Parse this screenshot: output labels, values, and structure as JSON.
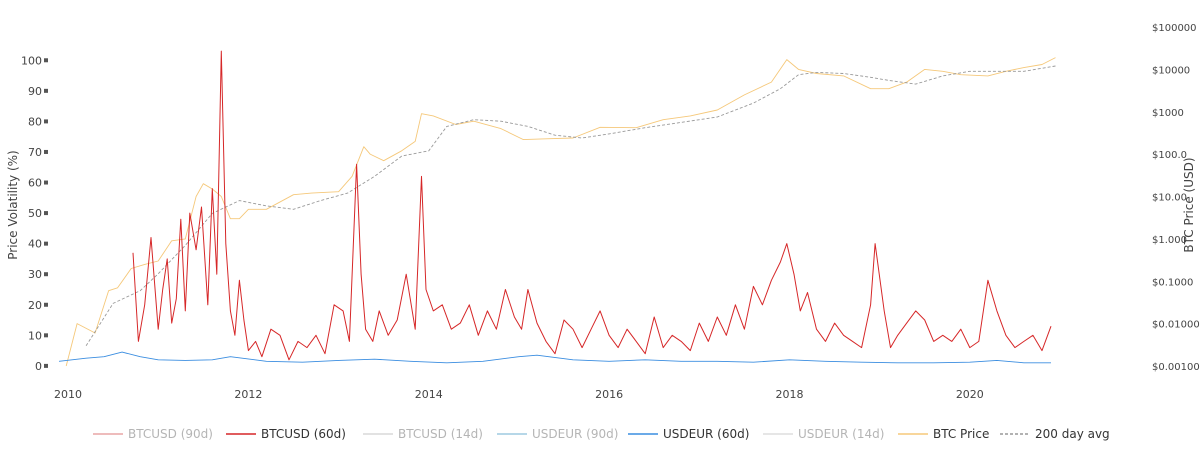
{
  "chart_data": {
    "type": "line",
    "title": "",
    "xlabel": "",
    "ylabel": "Price Volatility (%)",
    "y2label": "BTC Price (USD)",
    "xlim": [
      2009.8,
      2021.0
    ],
    "ylim": [
      -2,
      105
    ],
    "y2scale": "log",
    "y2lim": [
      0.001,
      100000
    ],
    "x_ticks": [
      2010,
      2012,
      2014,
      2016,
      2018,
      2020
    ],
    "x_tick_labels": [
      "2010",
      "2012",
      "2014",
      "2016",
      "2018",
      "2020"
    ],
    "y_ticks": [
      0,
      10,
      20,
      30,
      40,
      50,
      60,
      70,
      80,
      90,
      100
    ],
    "y_tick_labels": [
      "0",
      "10",
      "20",
      "30",
      "40",
      "50",
      "60",
      "70",
      "80",
      "90",
      "100"
    ],
    "y2_ticks": [
      0.001,
      0.01,
      0.1,
      1,
      10,
      100,
      1000,
      10000,
      100000
    ],
    "y2_tick_labels": [
      "$0.001000",
      "$0.01000",
      "$0.1000",
      "$1.000",
      "$10.00",
      "$100.0",
      "$1000",
      "$10000",
      "$100000"
    ],
    "grid": false,
    "legend_position": "bottom",
    "series": [
      {
        "name": "BTCUSD (90d)",
        "color": "#e8a5a5",
        "visible": false,
        "axis": "y",
        "x": [],
        "y": []
      },
      {
        "name": "BTCUSD (60d)",
        "color": "#d62728",
        "visible": true,
        "axis": "y",
        "x": [
          2010.72,
          2010.78,
          2010.85,
          2010.92,
          2011.0,
          2011.05,
          2011.1,
          2011.15,
          2011.2,
          2011.25,
          2011.3,
          2011.35,
          2011.42,
          2011.48,
          2011.55,
          2011.6,
          2011.65,
          2011.7,
          2011.75,
          2011.8,
          2011.85,
          2011.9,
          2011.95,
          2012.0,
          2012.08,
          2012.15,
          2012.25,
          2012.35,
          2012.45,
          2012.55,
          2012.65,
          2012.75,
          2012.85,
          2012.95,
          2013.05,
          2013.12,
          2013.2,
          2013.25,
          2013.3,
          2013.38,
          2013.45,
          2013.55,
          2013.65,
          2013.75,
          2013.85,
          2013.92,
          2013.97,
          2014.05,
          2014.15,
          2014.25,
          2014.35,
          2014.45,
          2014.55,
          2014.65,
          2014.75,
          2014.85,
          2014.95,
          2015.03,
          2015.1,
          2015.2,
          2015.3,
          2015.4,
          2015.5,
          2015.6,
          2015.7,
          2015.8,
          2015.9,
          2016.0,
          2016.1,
          2016.2,
          2016.3,
          2016.4,
          2016.5,
          2016.6,
          2016.7,
          2016.8,
          2016.9,
          2017.0,
          2017.1,
          2017.2,
          2017.3,
          2017.4,
          2017.5,
          2017.6,
          2017.7,
          2017.8,
          2017.9,
          2017.97,
          2018.05,
          2018.12,
          2018.2,
          2018.3,
          2018.4,
          2018.5,
          2018.6,
          2018.7,
          2018.8,
          2018.9,
          2018.95,
          2019.05,
          2019.12,
          2019.2,
          2019.3,
          2019.4,
          2019.5,
          2019.6,
          2019.7,
          2019.8,
          2019.9,
          2020.0,
          2020.1,
          2020.2,
          2020.3,
          2020.4,
          2020.5,
          2020.6,
          2020.7,
          2020.8,
          2020.9
        ],
        "y": [
          37,
          8,
          20,
          42,
          12,
          25,
          35,
          14,
          22,
          48,
          18,
          50,
          38,
          52,
          20,
          58,
          30,
          103,
          40,
          18,
          10,
          28,
          15,
          5,
          8,
          3,
          12,
          10,
          2,
          8,
          6,
          10,
          4,
          20,
          18,
          8,
          66,
          30,
          12,
          8,
          18,
          10,
          15,
          30,
          12,
          62,
          25,
          18,
          20,
          12,
          14,
          20,
          10,
          18,
          12,
          25,
          16,
          12,
          25,
          14,
          8,
          4,
          15,
          12,
          6,
          12,
          18,
          10,
          6,
          12,
          8,
          4,
          16,
          6,
          10,
          8,
          5,
          14,
          8,
          16,
          10,
          20,
          12,
          26,
          20,
          28,
          34,
          40,
          30,
          18,
          24,
          12,
          8,
          14,
          10,
          8,
          6,
          20,
          40,
          18,
          6,
          10,
          14,
          18,
          15,
          8,
          10,
          8,
          12,
          6,
          8,
          28,
          18,
          10,
          6,
          8,
          10,
          5,
          13
        ]
      },
      {
        "name": "BTCUSD (14d)",
        "color": "#d9d9d9",
        "visible": false,
        "axis": "y",
        "x": [],
        "y": []
      },
      {
        "name": "USDEUR (90d)",
        "color": "#9ecae1",
        "visible": false,
        "axis": "y",
        "x": [],
        "y": []
      },
      {
        "name": "USDEUR (60d)",
        "color": "#3a8de0",
        "visible": true,
        "axis": "y",
        "x": [
          2009.9,
          2010.2,
          2010.4,
          2010.6,
          2010.8,
          2011.0,
          2011.3,
          2011.6,
          2011.8,
          2012.2,
          2012.6,
          2013.0,
          2013.4,
          2013.8,
          2014.2,
          2014.6,
          2015.0,
          2015.2,
          2015.6,
          2016.0,
          2016.4,
          2016.8,
          2017.2,
          2017.6,
          2018.0,
          2018.4,
          2018.8,
          2019.2,
          2019.6,
          2020.0,
          2020.3,
          2020.6,
          2020.9
        ],
        "y": [
          1.5,
          2.5,
          3,
          4.5,
          3,
          2,
          1.8,
          2,
          3,
          1.5,
          1.2,
          1.8,
          2.2,
          1.5,
          1,
          1.5,
          3,
          3.5,
          2,
          1.5,
          2,
          1.5,
          1.5,
          1.2,
          2,
          1.5,
          1.2,
          1,
          1,
          1.2,
          1.8,
          1,
          1
        ]
      },
      {
        "name": "USDEUR (14d)",
        "color": "#dddddd",
        "visible": false,
        "axis": "y",
        "x": [],
        "y": []
      },
      {
        "name": "BTC Price",
        "color": "#f5c87a",
        "visible": true,
        "axis": "y2",
        "x": [
          2009.98,
          2010.1,
          2010.3,
          2010.45,
          2010.55,
          2010.7,
          2010.85,
          2011.0,
          2011.15,
          2011.3,
          2011.42,
          2011.5,
          2011.6,
          2011.7,
          2011.8,
          2011.9,
          2012.0,
          2012.2,
          2012.5,
          2012.7,
          2013.0,
          2013.15,
          2013.28,
          2013.35,
          2013.5,
          2013.7,
          2013.85,
          2013.92,
          2014.05,
          2014.3,
          2014.5,
          2014.8,
          2015.05,
          2015.3,
          2015.6,
          2015.9,
          2016.3,
          2016.6,
          2016.9,
          2017.2,
          2017.5,
          2017.8,
          2017.97,
          2018.1,
          2018.3,
          2018.6,
          2018.9,
          2019.1,
          2019.3,
          2019.5,
          2019.7,
          2019.9,
          2020.2,
          2020.4,
          2020.6,
          2020.8,
          2020.95
        ],
        "y": [
          0.001,
          0.01,
          0.006,
          0.06,
          0.07,
          0.2,
          0.25,
          0.3,
          0.9,
          1,
          10,
          20,
          15,
          10,
          3,
          3,
          5,
          5,
          11,
          12,
          13,
          30,
          150,
          100,
          70,
          120,
          200,
          900,
          800,
          500,
          600,
          400,
          220,
          230,
          240,
          430,
          420,
          650,
          800,
          1100,
          2500,
          5000,
          17000,
          10000,
          8000,
          7000,
          3500,
          3500,
          5000,
          10000,
          9000,
          7500,
          7000,
          9000,
          11000,
          13000,
          19000
        ]
      },
      {
        "name": "200 day avg",
        "color": "#999999",
        "visible": true,
        "axis": "y2",
        "x": [
          2010.2,
          2010.5,
          2010.8,
          2011.0,
          2011.3,
          2011.6,
          2011.9,
          2012.2,
          2012.5,
          2012.8,
          2013.1,
          2013.4,
          2013.7,
          2014.0,
          2014.2,
          2014.5,
          2014.8,
          2015.1,
          2015.4,
          2015.7,
          2016.0,
          2016.4,
          2016.8,
          2017.2,
          2017.6,
          2017.9,
          2018.1,
          2018.3,
          2018.6,
          2018.9,
          2019.1,
          2019.4,
          2019.7,
          2020.0,
          2020.3,
          2020.6,
          2020.95
        ],
        "y": [
          0.003,
          0.03,
          0.06,
          0.15,
          0.7,
          4,
          8,
          6,
          5,
          8,
          12,
          30,
          90,
          120,
          450,
          650,
          600,
          450,
          280,
          240,
          300,
          420,
          560,
          750,
          1600,
          3500,
          7500,
          8500,
          8000,
          6500,
          5500,
          4500,
          7000,
          9000,
          9000,
          9000,
          12000
        ]
      }
    ]
  }
}
